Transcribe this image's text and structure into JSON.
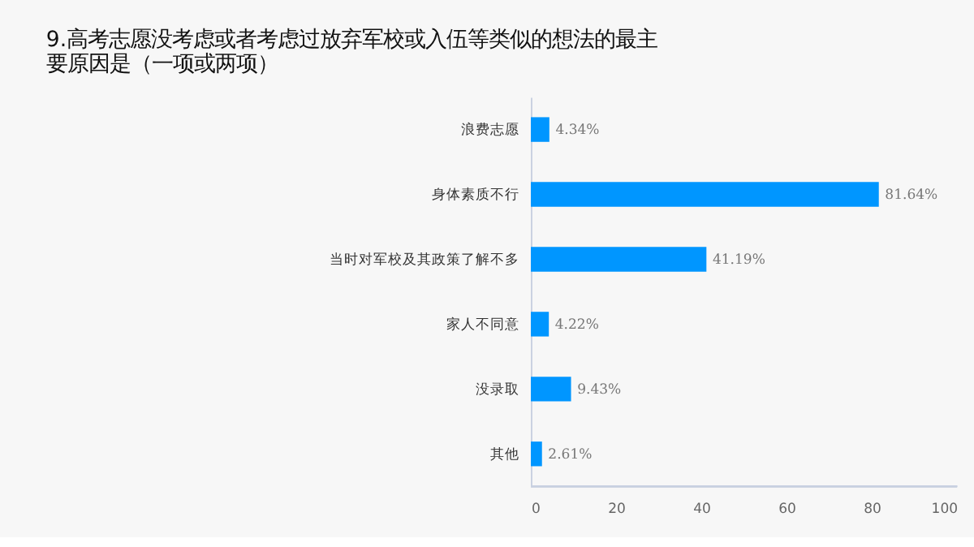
{
  "chart_data": {
    "type": "bar",
    "orientation": "horizontal",
    "title": "9.高考志愿没考虑或者考虑过放弃军校或入伍等类似的想法的最主要原因是（一项或两项）",
    "categories": [
      "浪费志愿",
      "身体素质不行",
      "当时对军校及其政策了解不多",
      "家人不同意",
      "没录取",
      "其他"
    ],
    "values": [
      4.34,
      81.64,
      41.19,
      4.22,
      9.43,
      2.61
    ],
    "value_labels": [
      "4.34%",
      "81.64%",
      "41.19%",
      "4.22%",
      "9.43%",
      "2.61%"
    ],
    "color": "#0096ff",
    "xlim": [
      0,
      100
    ],
    "xticks": [
      0,
      20,
      40,
      60,
      80,
      100
    ],
    "grid": false
  }
}
